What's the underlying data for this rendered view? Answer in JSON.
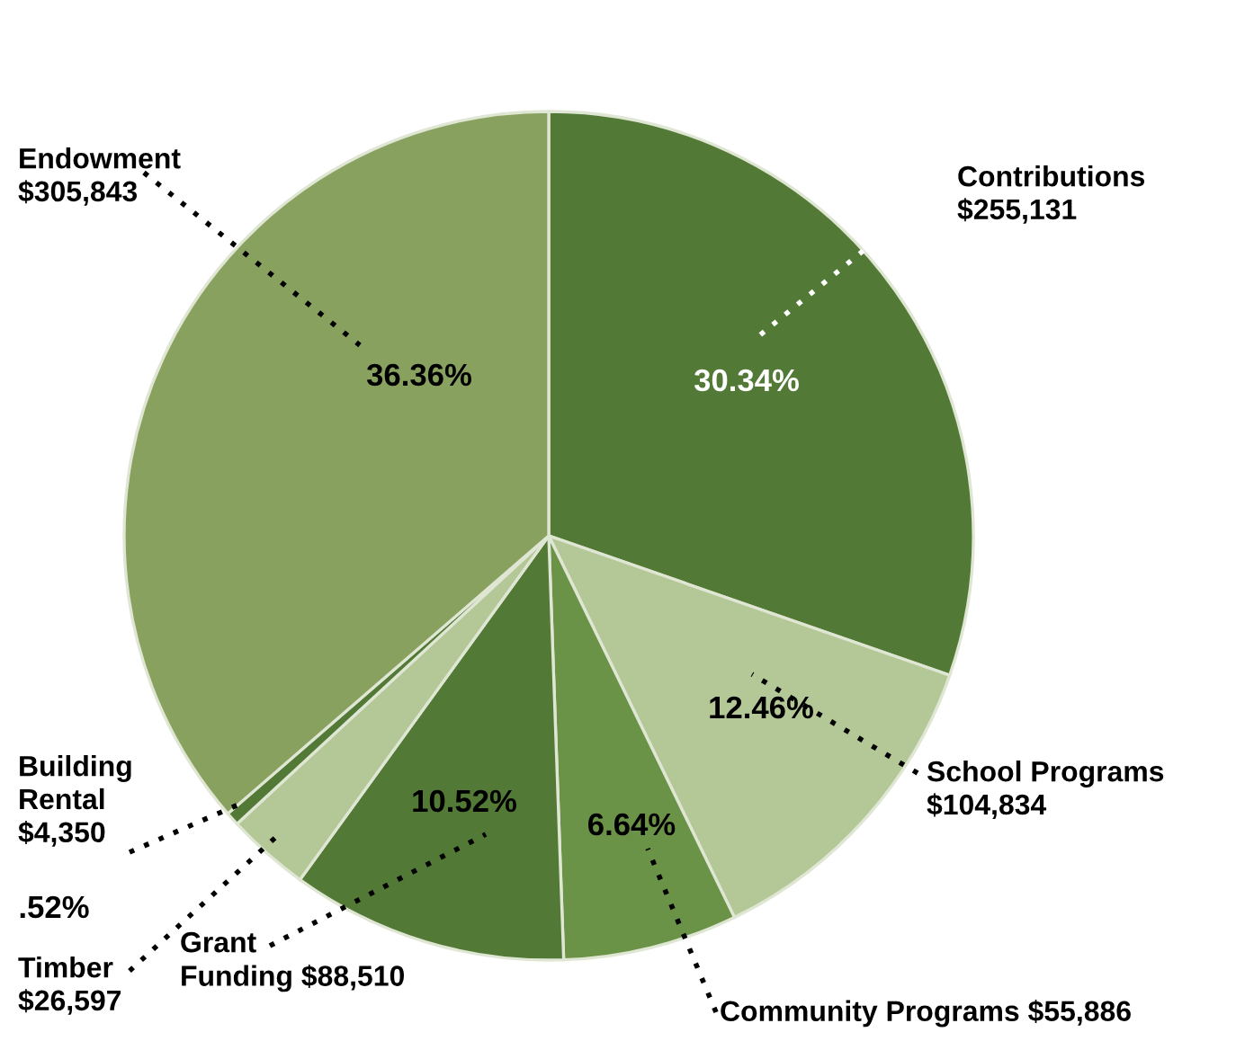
{
  "chart_data": {
    "type": "pie",
    "categories": [
      "Contributions",
      "School Programs",
      "Community Programs",
      "Grant Funding",
      "Timber",
      "Building Rental",
      "Endowment"
    ],
    "values": [
      255131,
      104834,
      55886,
      88510,
      26597,
      4350,
      305843
    ],
    "value_labels": [
      "$255,131",
      "$104,834",
      "$55,886",
      "$88,510",
      "$26,597",
      "$4,350",
      "$305,843"
    ],
    "colors": [
      "#527a36",
      "#b3c896",
      "#6b9347",
      "#527a36",
      "#b3c896",
      "#527a36",
      "#88a15f"
    ],
    "annotations": [
      {
        "text": "30.34%",
        "x": "Contributions"
      },
      {
        "text": "12.46%",
        "x": "School Programs"
      },
      {
        "text": "6.64%",
        "x": "Community Programs"
      },
      {
        "text": "10.52%",
        "x": "Grant Funding"
      },
      {
        "text": ".52%",
        "x": "Building Rental"
      },
      {
        "text": "36.36%",
        "x": "Endowment"
      }
    ],
    "legend": false
  }
}
